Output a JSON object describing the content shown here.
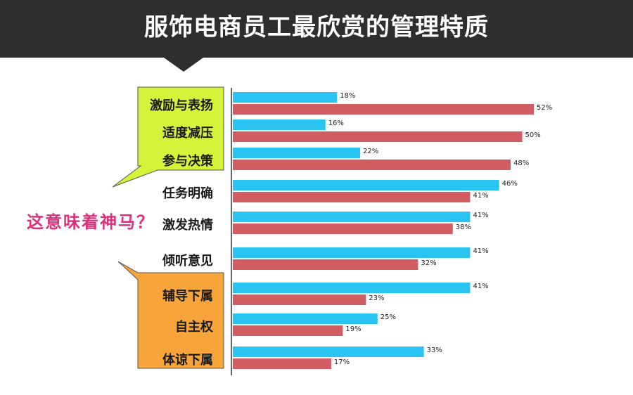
{
  "title": "服饰电商员工最欣赏的管理特质",
  "annotation": "这意味着神马？",
  "colors": {
    "series_a": "#29c4f2",
    "series_b": "#d15c61",
    "callout_green": "#d6f23a",
    "callout_orange": "#f7a43a",
    "header": "#2e2e2e",
    "annotation": "#d9317a"
  },
  "chart_data": {
    "type": "bar",
    "orientation": "horizontal",
    "categories": [
      "激励与表扬",
      "适度减压",
      "参与决策",
      "任务明确",
      "激发热情",
      "倾听意见",
      "辅导下属",
      "自主权",
      "体谅下属"
    ],
    "series": [
      {
        "values": [
          18,
          16,
          22,
          46,
          41,
          41,
          41,
          25,
          33
        ],
        "labels": [
          "18%",
          "16%",
          "22%",
          "46%",
          "41%",
          "41%",
          "41%",
          "25%",
          "33%"
        ]
      },
      {
        "values": [
          52,
          50,
          48,
          41,
          38,
          32,
          23,
          19,
          17
        ],
        "labels": [
          "52%",
          "50%",
          "48%",
          "41%",
          "38%",
          "32%",
          "23%",
          "19%",
          "17%"
        ]
      }
    ],
    "xlim": [
      0,
      60
    ],
    "grid": false,
    "legend": false
  }
}
